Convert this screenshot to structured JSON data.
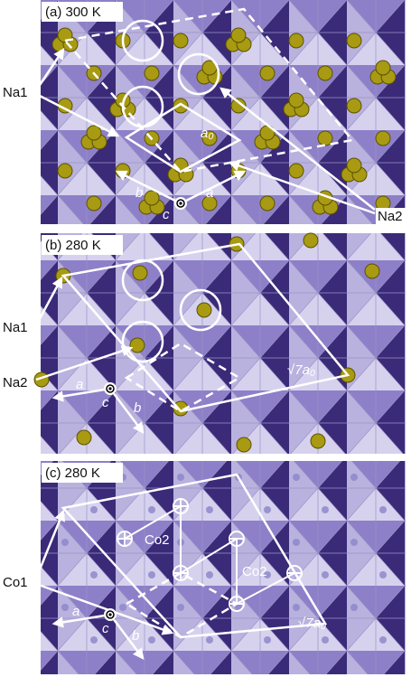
{
  "panels": [
    {
      "title": "(a) 300 K",
      "labels": [
        "Na1",
        "Na2",
        "a₀",
        "a",
        "b",
        "c"
      ]
    },
    {
      "title": "(b) 280 K",
      "labels": [
        "Na1",
        "Na2",
        "√7a₀",
        "a",
        "b",
        "c"
      ]
    },
    {
      "title": "(c) 280 K",
      "labels": [
        "Co1",
        "Co2",
        "Co2",
        "√7a₀",
        "a",
        "b",
        "c"
      ]
    }
  ]
}
